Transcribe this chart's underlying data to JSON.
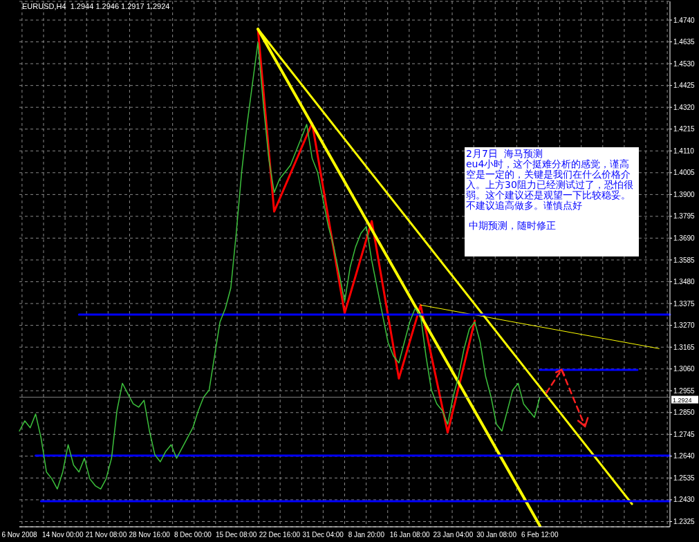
{
  "chart_data": {
    "type": "line",
    "title": "EURUSD,H4  1.2944 1.2946 1.2917 1.2924",
    "categories": [
      "6 Nov 2008",
      null,
      null,
      null,
      null,
      null,
      null,
      null,
      "14 Nov 00:00",
      null,
      null,
      null,
      null,
      null,
      null,
      null,
      "21 Nov 08:00",
      null,
      null,
      null,
      null,
      null,
      null,
      null,
      "28 Nov 16:00",
      null,
      null,
      null,
      null,
      null,
      null,
      null,
      "8 Dec 00:00",
      null,
      null,
      null,
      null,
      null,
      null,
      null,
      "15 Dec 08:00",
      null,
      null,
      null,
      null,
      null,
      null,
      null,
      "22 Dec 16:00",
      null,
      null,
      null,
      null,
      null,
      null,
      null,
      "31 Dec 04:00",
      null,
      null,
      null,
      null,
      null,
      null,
      null,
      "8 Jan 20:00",
      null,
      null,
      null,
      null,
      null,
      null,
      null,
      "16 Jan 08:00",
      null,
      null,
      null,
      null,
      null,
      null,
      null,
      "23 Jan 04:00",
      null,
      null,
      null,
      null,
      null,
      null,
      null,
      "30 Jan 08:00",
      null,
      null,
      null,
      null,
      null,
      null,
      null,
      "6 Feb 12:00",
      null,
      null,
      null,
      null,
      null,
      null,
      null,
      null,
      null,
      null,
      null,
      null,
      null,
      null,
      null,
      null,
      null,
      null,
      null,
      null,
      null,
      null,
      null,
      null
    ],
    "series": [
      {
        "color": "#3cc03c",
        "values": [
          1.2761,
          1.281,
          1.2777,
          1.2843,
          1.2728,
          1.2564,
          1.2531,
          1.2482,
          1.2564,
          1.2695,
          1.2597,
          1.2564,
          1.263,
          1.2531,
          1.2498,
          1.2482,
          1.2531,
          1.263,
          1.2859,
          1.2991,
          1.2941,
          1.2892,
          1.2876,
          1.2909,
          1.2761,
          1.2646,
          1.2613,
          1.2663,
          1.2695,
          1.263,
          1.2679,
          1.2728,
          1.2777,
          1.2859,
          1.2925,
          1.2958,
          1.3122,
          1.3286,
          1.3352,
          1.345,
          1.3713,
          1.4008,
          1.4238,
          1.4435,
          1.4632,
          1.4336,
          1.4074,
          1.391,
          1.3975,
          1.4008,
          1.4041,
          1.4107,
          1.4172,
          1.4238,
          1.4074,
          1.4008,
          1.3877,
          1.3746,
          1.3647,
          1.3516,
          1.3385,
          1.3549,
          1.3647,
          1.3713,
          1.3746,
          1.3581,
          1.345,
          1.3319,
          1.3188,
          1.3122,
          1.3089,
          1.3188,
          1.3286,
          1.3352,
          1.3319,
          1.3122,
          1.2958,
          1.2892,
          1.2859,
          1.2794,
          1.2925,
          1.3024,
          1.3155,
          1.3253,
          1.3286,
          1.3188,
          1.3024,
          1.2925,
          1.2794,
          1.2761,
          1.2859,
          1.2958,
          1.2991,
          1.2892,
          1.2859,
          1.2827,
          1.2924,
          null,
          null,
          null,
          null,
          null,
          null,
          null,
          null,
          null,
          null,
          null,
          null,
          null,
          null,
          null,
          null,
          null,
          null,
          null,
          null,
          null,
          null,
          null,
          null
        ]
      },
      {
        "color": "#ff0000",
        "values": [
          null,
          null,
          null,
          null,
          null,
          null,
          null,
          null,
          null,
          null,
          null,
          null,
          null,
          null,
          null,
          null,
          null,
          null,
          null,
          null,
          null,
          null,
          null,
          null,
          null,
          null,
          null,
          null,
          null,
          null,
          null,
          null,
          null,
          null,
          null,
          null,
          null,
          null,
          null,
          null,
          null,
          null,
          null,
          null,
          1.4697,
          null,
          null,
          1.3818,
          null,
          null,
          null,
          null,
          null,
          null,
          1.4244,
          null,
          null,
          null,
          null,
          null,
          1.3329,
          null,
          null,
          null,
          null,
          1.3772,
          null,
          null,
          null,
          null,
          1.3014,
          null,
          null,
          null,
          1.3368,
          null,
          null,
          null,
          null,
          1.2754,
          null,
          null,
          null,
          null,
          1.3293,
          null,
          null,
          null,
          null,
          null,
          null,
          null,
          null,
          null,
          null,
          null,
          null,
          null,
          null,
          null,
          null,
          null,
          null,
          null,
          null,
          null,
          null,
          null,
          null,
          null,
          null,
          null,
          null,
          null,
          null,
          null,
          null,
          null,
          null,
          null,
          null
        ]
      },
      {
        "color": "#ffff00",
        "values": [
          null,
          null,
          null,
          null,
          null,
          null,
          null,
          null,
          null,
          null,
          null,
          null,
          null,
          null,
          null,
          null,
          null,
          null,
          null,
          null,
          null,
          null,
          null,
          null,
          null,
          null,
          null,
          null,
          null,
          null,
          null,
          null,
          null,
          null,
          null,
          null,
          null,
          null,
          null,
          null,
          null,
          null,
          null,
          null,
          1.4697,
          null,
          null,
          null,
          null,
          null,
          null,
          null,
          null,
          null,
          null,
          null,
          null,
          null,
          null,
          null,
          null,
          null,
          null,
          null,
          null,
          null,
          null,
          null,
          null,
          null,
          null,
          null,
          null,
          null,
          null,
          null,
          null,
          null,
          null,
          null,
          null,
          null,
          null,
          null,
          null,
          null,
          null,
          null,
          null,
          null,
          null,
          null,
          null,
          null,
          null,
          null,
          null,
          null,
          null,
          null,
          null,
          null,
          null,
          null,
          null,
          null,
          null,
          null,
          null,
          null,
          null,
          null,
          null,
          1.241,
          null,
          null,
          null,
          null,
          null,
          null,
          null
        ]
      },
      {
        "color": "#ffff00",
        "values": [
          null,
          null,
          null,
          null,
          null,
          null,
          null,
          null,
          null,
          null,
          null,
          null,
          null,
          null,
          null,
          null,
          null,
          null,
          null,
          null,
          null,
          null,
          null,
          null,
          null,
          null,
          null,
          null,
          null,
          null,
          null,
          null,
          null,
          null,
          null,
          null,
          null,
          null,
          null,
          null,
          null,
          null,
          null,
          null,
          1.4697,
          null,
          null,
          null,
          null,
          null,
          null,
          null,
          null,
          null,
          null,
          null,
          null,
          null,
          null,
          null,
          null,
          null,
          null,
          null,
          null,
          null,
          null,
          null,
          null,
          null,
          null,
          null,
          null,
          null,
          null,
          null,
          null,
          null,
          null,
          null,
          null,
          null,
          null,
          null,
          null,
          null,
          null,
          null,
          null,
          null,
          null,
          null,
          null,
          null,
          null,
          null,
          1.2305,
          null,
          null,
          null,
          null,
          null,
          null,
          null,
          null,
          null,
          null,
          null,
          null,
          null,
          null,
          null,
          null,
          null,
          null,
          null,
          null,
          null,
          null,
          null,
          null
        ]
      },
      {
        "color": "#ffff00",
        "values": [
          null,
          null,
          null,
          null,
          null,
          null,
          null,
          null,
          null,
          null,
          null,
          null,
          null,
          null,
          null,
          null,
          null,
          null,
          null,
          null,
          null,
          null,
          null,
          null,
          null,
          null,
          null,
          null,
          null,
          null,
          null,
          null,
          null,
          null,
          null,
          null,
          null,
          null,
          null,
          null,
          null,
          null,
          null,
          null,
          null,
          null,
          null,
          null,
          null,
          null,
          null,
          null,
          null,
          null,
          null,
          null,
          null,
          null,
          null,
          null,
          null,
          null,
          null,
          null,
          null,
          null,
          null,
          null,
          null,
          null,
          null,
          null,
          null,
          null,
          1.3368,
          null,
          null,
          null,
          null,
          null,
          null,
          null,
          null,
          null,
          null,
          null,
          null,
          null,
          null,
          null,
          null,
          null,
          null,
          null,
          null,
          null,
          null,
          null,
          null,
          null,
          null,
          null,
          null,
          null,
          null,
          null,
          null,
          null,
          null,
          null,
          null,
          null,
          null,
          null,
          null,
          null,
          null,
          null,
          1.3158,
          null,
          null
        ]
      },
      {
        "color": "#0000ff",
        "values": [
          null,
          null,
          null,
          null,
          null,
          null,
          null,
          null,
          null,
          null,
          null,
          1.3322,
          null,
          null,
          null,
          null,
          null,
          null,
          null,
          null,
          null,
          null,
          null,
          null,
          null,
          null,
          null,
          null,
          null,
          null,
          null,
          null,
          null,
          null,
          null,
          null,
          null,
          null,
          null,
          null,
          null,
          null,
          null,
          null,
          null,
          null,
          null,
          null,
          null,
          null,
          null,
          null,
          null,
          null,
          null,
          null,
          null,
          null,
          null,
          null,
          null,
          null,
          null,
          null,
          null,
          null,
          null,
          null,
          null,
          null,
          null,
          null,
          null,
          null,
          null,
          null,
          null,
          null,
          null,
          null,
          null,
          null,
          null,
          null,
          null,
          null,
          null,
          null,
          null,
          null,
          null,
          null,
          null,
          null,
          null,
          null,
          null,
          null,
          null,
          null,
          null,
          null,
          null,
          null,
          null,
          null,
          null,
          null,
          null,
          null,
          null,
          null,
          null,
          null,
          null,
          null,
          null,
          null,
          null,
          null,
          1.3322
        ]
      },
      {
        "color": "#0000ff",
        "values": [
          null,
          null,
          null,
          null,
          null,
          null,
          null,
          null,
          null,
          null,
          null,
          null,
          null,
          null,
          null,
          null,
          null,
          null,
          null,
          null,
          null,
          null,
          null,
          null,
          null,
          null,
          null,
          null,
          null,
          null,
          null,
          null,
          null,
          null,
          null,
          null,
          null,
          null,
          null,
          null,
          null,
          null,
          null,
          null,
          null,
          null,
          null,
          null,
          null,
          null,
          null,
          null,
          null,
          null,
          null,
          null,
          null,
          null,
          null,
          null,
          null,
          null,
          null,
          null,
          null,
          null,
          null,
          null,
          null,
          null,
          null,
          null,
          null,
          null,
          null,
          null,
          null,
          null,
          null,
          null,
          null,
          null,
          null,
          null,
          null,
          null,
          null,
          null,
          null,
          null,
          null,
          null,
          null,
          null,
          null,
          null,
          1.3056,
          null,
          null,
          null,
          null,
          null,
          null,
          null,
          null,
          null,
          null,
          null,
          null,
          null,
          null,
          null,
          null,
          null,
          1.3056,
          null,
          null,
          null,
          null,
          null,
          null
        ]
      },
      {
        "color": "#0000ff",
        "values": [
          null,
          null,
          null,
          1.2643,
          null,
          null,
          null,
          null,
          null,
          null,
          null,
          null,
          null,
          null,
          null,
          null,
          null,
          null,
          null,
          null,
          null,
          null,
          null,
          null,
          null,
          null,
          null,
          null,
          null,
          null,
          null,
          null,
          null,
          null,
          null,
          null,
          null,
          null,
          null,
          null,
          null,
          null,
          null,
          null,
          null,
          null,
          null,
          null,
          null,
          null,
          null,
          null,
          null,
          null,
          null,
          null,
          null,
          null,
          null,
          null,
          null,
          null,
          null,
          null,
          null,
          null,
          null,
          null,
          null,
          null,
          null,
          null,
          null,
          null,
          null,
          null,
          null,
          null,
          null,
          null,
          null,
          null,
          null,
          null,
          null,
          null,
          null,
          null,
          null,
          null,
          null,
          null,
          null,
          null,
          null,
          null,
          null,
          null,
          null,
          null,
          null,
          null,
          null,
          null,
          null,
          null,
          null,
          null,
          null,
          null,
          null,
          null,
          null,
          null,
          null,
          null,
          null,
          null,
          null,
          null,
          1.2643
        ]
      },
      {
        "color": "#0000ff",
        "values": [
          null,
          null,
          null,
          null,
          1.2423,
          null,
          null,
          null,
          null,
          null,
          null,
          null,
          null,
          null,
          null,
          null,
          null,
          null,
          null,
          null,
          null,
          null,
          null,
          null,
          null,
          null,
          null,
          null,
          null,
          null,
          null,
          null,
          null,
          null,
          null,
          null,
          null,
          null,
          null,
          null,
          null,
          null,
          null,
          null,
          null,
          null,
          null,
          null,
          null,
          null,
          null,
          null,
          null,
          null,
          null,
          null,
          null,
          null,
          null,
          null,
          null,
          null,
          null,
          null,
          null,
          null,
          null,
          null,
          null,
          null,
          null,
          null,
          null,
          null,
          null,
          null,
          null,
          null,
          null,
          null,
          null,
          null,
          null,
          null,
          null,
          null,
          null,
          null,
          null,
          null,
          null,
          null,
          null,
          null,
          null,
          null,
          null,
          null,
          null,
          null,
          null,
          null,
          null,
          null,
          null,
          null,
          null,
          null,
          null,
          null,
          null,
          null,
          null,
          null,
          null,
          null,
          null,
          null,
          null,
          null,
          1.2423
        ]
      }
    ],
    "ylim": [
      1.23,
      1.483
    ],
    "yticks": [
      {
        "value": 1.2325,
        "label": "1.2325"
      },
      {
        "value": 1.243,
        "label": "1.2430"
      },
      {
        "value": 1.2535,
        "label": "1.2535"
      },
      {
        "value": 1.264,
        "label": "1.2640"
      },
      {
        "value": 1.2745,
        "label": "1.2745"
      },
      {
        "value": 1.285,
        "label": "1.2850"
      },
      {
        "value": 1.2955,
        "label": "1.2955"
      },
      {
        "value": 1.306,
        "label": "1.3060"
      },
      {
        "value": 1.3165,
        "label": "1.3165"
      },
      {
        "value": 1.327,
        "label": "1.3270"
      },
      {
        "value": 1.3375,
        "label": "1.3375"
      },
      {
        "value": 1.348,
        "label": "1.3480"
      },
      {
        "value": 1.3585,
        "label": "1.3585"
      },
      {
        "value": 1.369,
        "label": "1.3690"
      },
      {
        "value": 1.3795,
        "label": "1.3795"
      },
      {
        "value": 1.39,
        "label": "1.3900"
      },
      {
        "value": 1.4005,
        "label": "1.4005"
      },
      {
        "value": 1.411,
        "label": "1.4110"
      },
      {
        "value": 1.4215,
        "label": "1.4215"
      },
      {
        "value": 1.432,
        "label": "1.4320"
      },
      {
        "value": 1.4425,
        "label": "1.4425"
      },
      {
        "value": 1.453,
        "label": "1.4530"
      },
      {
        "value": 1.4635,
        "label": "1.4635"
      },
      {
        "value": 1.474,
        "label": "1.4740"
      }
    ],
    "ref_lines": [
      {
        "axis": "y",
        "value": 1.2924,
        "label": "1.2924",
        "color": "#808080"
      }
    ],
    "annotations": [
      "2月7日  海马预测",
      "eu4小时，这个挺难分析的感觉，谨高空是一定的，关键是我们在什么价格介入。上方30阻力已经测试过了，恐怕很弱。这个建议还是观望一下比较稳妥。不建议追高做多。谨慎点好",
      "中期预测，随时修正"
    ],
    "grid": true,
    "marker": "none",
    "line_style": "solid"
  }
}
